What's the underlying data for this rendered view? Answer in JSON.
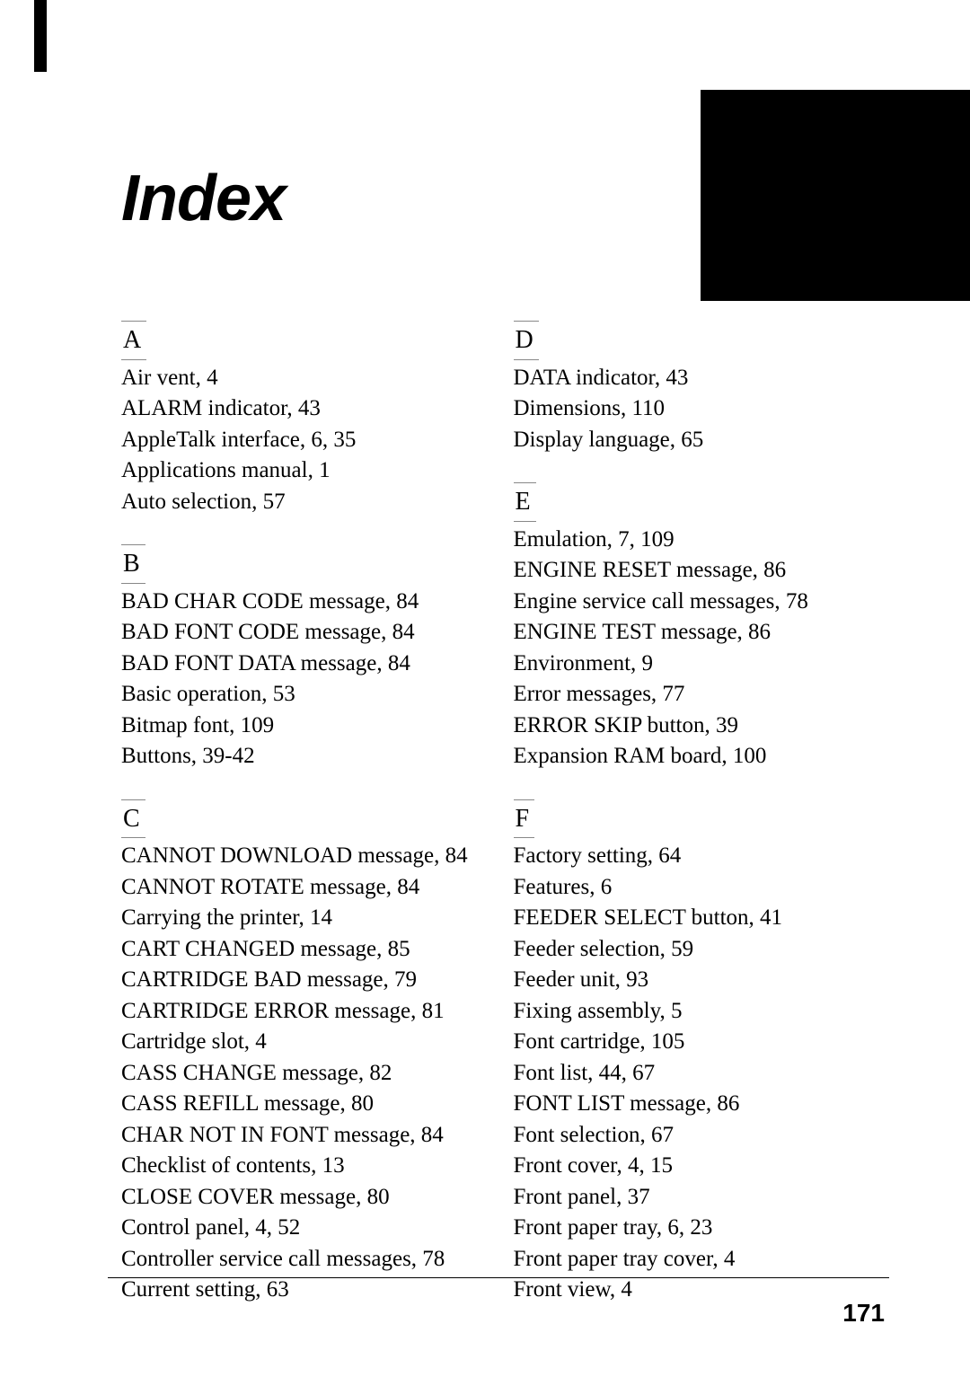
{
  "title": "Index",
  "page_number": "171",
  "left": {
    "A": {
      "letter": "A",
      "items": [
        "Air vent, 4",
        "ALARM indicator, 43",
        "AppleTalk interface, 6, 35",
        "Applications manual, 1",
        "Auto selection, 57"
      ]
    },
    "B": {
      "letter": "B",
      "items": [
        "BAD CHAR CODE message, 84",
        "BAD FONT CODE message, 84",
        "BAD FONT DATA message, 84",
        "Basic operation, 53",
        "Bitmap font, 109",
        "Buttons, 39-42"
      ]
    },
    "C": {
      "letter": "C",
      "items": [
        "CANNOT DOWNLOAD message, 84",
        "CANNOT ROTATE message, 84",
        "Carrying the printer, 14",
        "CART CHANGED message, 85",
        "CARTRIDGE BAD message, 79",
        "CARTRIDGE ERROR message, 81",
        "Cartridge slot, 4",
        "CASS CHANGE message, 82",
        "CASS REFILL message, 80",
        "CHAR NOT IN FONT message, 84",
        "Checklist of contents, 13",
        "CLOSE COVER message, 80",
        "Control panel, 4, 52",
        "Controller service call messages, 78",
        "Current setting, 63"
      ]
    }
  },
  "right": {
    "D": {
      "letter": "D",
      "items": [
        "DATA indicator, 43",
        "Dimensions, 110",
        "Display language, 65"
      ]
    },
    "E": {
      "letter": "E",
      "items": [
        "Emulation, 7, 109",
        "ENGINE RESET message, 86",
        "Engine service call messages, 78",
        "ENGINE TEST message, 86",
        "Environment, 9",
        "Error messages, 77",
        "ERROR SKIP button, 39",
        "Expansion RAM board, 100"
      ]
    },
    "F": {
      "letter": "F",
      "items": [
        "Factory setting, 64",
        "Features, 6",
        "FEEDER SELECT button, 41",
        "Feeder selection, 59",
        "Feeder unit, 93",
        "Fixing assembly, 5",
        "Font cartridge, 105",
        "Font list, 44, 67",
        "FONT LIST message, 86",
        "Font selection, 67",
        "Front cover, 4, 15",
        "Front panel, 37",
        "Front paper tray, 6, 23",
        "Front paper tray cover, 4",
        "Front view, 4"
      ]
    }
  }
}
